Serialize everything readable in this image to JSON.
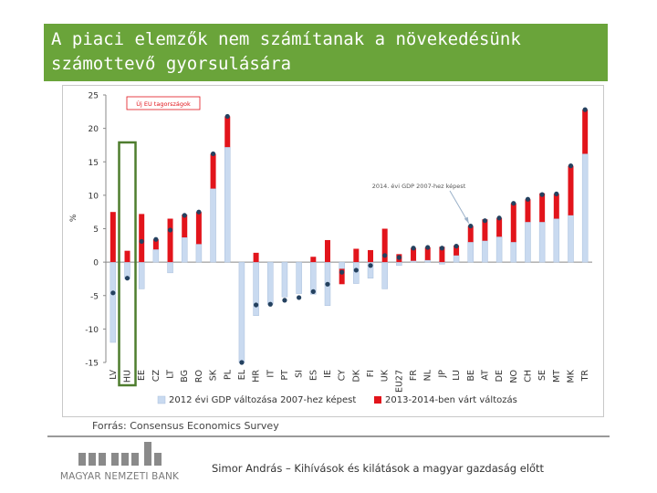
{
  "title": "A piaci elemzők nem számítanak a növekedésünk\nszámottevő gyorsulására",
  "source": "Forrás: Consensus Economics Survey",
  "footer": "Simor András – Kihívások és kilátások a magyar gazdaság előtt",
  "logo_text": "MAGYAR NEMZETI BANK",
  "colors": {
    "title_bg": "#6aa43a",
    "bar_2012": "#c9daf0",
    "bar_forecast": "#e2141b",
    "dot": "#24415f",
    "highlight": "#4e7d2e"
  },
  "chart_data": {
    "type": "bar",
    "title": "",
    "xlabel": "",
    "ylabel": "%",
    "ylim": [
      -15,
      25
    ],
    "yticks": [
      -15,
      -10,
      -5,
      0,
      5,
      10,
      15,
      20,
      25
    ],
    "grid": false,
    "legend_placement": "bottom",
    "inset_label": "Új EU tagországok",
    "annotation": "2014. évi GDP 2007-hez képest",
    "highlighted_category": "HU",
    "categories": [
      "LV",
      "HU",
      "EE",
      "CZ",
      "LT",
      "BG",
      "RO",
      "SK",
      "PL",
      "EL",
      "HR",
      "IT",
      "PT",
      "SI",
      "ES",
      "IE",
      "CY",
      "DK",
      "FI",
      "UK",
      "EU27",
      "FR",
      "NL",
      "JP",
      "LU",
      "BE",
      "AT",
      "DE",
      "NO",
      "CH",
      "SE",
      "MT",
      "MK",
      "TR"
    ],
    "series": [
      {
        "name": "2012 évi GDP változása 2007-hez képest",
        "values": [
          -12,
          -2.5,
          -4,
          1.9,
          -1.6,
          3.7,
          2.7,
          11,
          17.2,
          -15,
          -8,
          -6.3,
          -5.2,
          -4.7,
          -4.8,
          -6.5,
          -1,
          -3.2,
          -2.4,
          -4,
          -0.5,
          0.2,
          0.3,
          -0.3,
          1,
          3,
          3.2,
          3.8,
          3,
          6,
          6,
          6.5,
          7,
          16.2
        ]
      },
      {
        "name": "2013-2014-ben várt változás",
        "values": [
          7.5,
          1.7,
          7.2,
          1.5,
          6.5,
          3.4,
          4.8,
          5.2,
          4.6,
          0,
          1.4,
          0,
          0,
          0,
          0.8,
          3.3,
          -2.3,
          2,
          1.8,
          5,
          1.2,
          1.9,
          1.9,
          2.3,
          1.5,
          2.4,
          3.2,
          2.8,
          5.8,
          3.4,
          4.3,
          3.7,
          7.4,
          6.6
        ]
      },
      {
        "name": "2014. évi GDP 2007-hez képest",
        "values": [
          -4.6,
          -2.4,
          3.1,
          3.4,
          4.8,
          7,
          7.5,
          16.2,
          21.8,
          -15,
          -6.4,
          -6.3,
          -5.7,
          -5.3,
          -4.4,
          -3.3,
          -1.5,
          -1.2,
          -0.5,
          1,
          0.7,
          2.1,
          2.2,
          2.1,
          2.4,
          5.4,
          6.2,
          6.6,
          8.8,
          9.4,
          10.1,
          10.2,
          14.4,
          22.8
        ]
      }
    ]
  }
}
